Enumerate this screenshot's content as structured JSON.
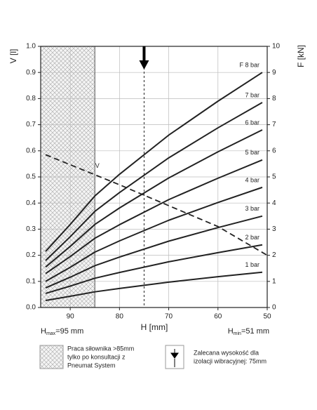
{
  "chart_data": {
    "type": "line",
    "x": [
      95,
      90,
      85,
      80,
      70,
      60,
      51
    ],
    "xlim": [
      96,
      50
    ],
    "xticks": [
      90,
      80,
      70,
      60,
      50
    ],
    "ylim": [
      0,
      1
    ],
    "yticks": [
      {
        "value": 0,
        "label": "0.0"
      },
      0.1,
      0.2,
      0.3,
      0.4,
      0.5,
      0.6,
      0.7,
      0.8,
      0.9,
      {
        "value": 1,
        "label": "1.0"
      }
    ],
    "y2lim": [
      0,
      10
    ],
    "y2ticks": [
      0,
      1,
      2,
      3,
      4,
      5,
      6,
      7,
      8,
      9,
      10
    ],
    "ylabel": "V [l]",
    "y2label": "F [kN]",
    "xlabel": "H [mm]",
    "grid": true,
    "color": "#222222",
    "series": [
      {
        "name": "1 bar",
        "axis": "y2",
        "values": [
          0.27,
          0.43,
          0.6,
          0.73,
          0.97,
          1.18,
          1.35
        ]
      },
      {
        "name": "2 bar",
        "axis": "y2",
        "values": [
          0.54,
          0.82,
          1.12,
          1.34,
          1.75,
          2.1,
          2.4
        ]
      },
      {
        "name": "3 bar",
        "axis": "y2",
        "values": [
          0.75,
          1.16,
          1.6,
          1.93,
          2.54,
          3.06,
          3.5
        ]
      },
      {
        "name": "4 bar",
        "axis": "y2",
        "values": [
          1.0,
          1.54,
          2.12,
          2.55,
          3.34,
          4.02,
          4.6
        ]
      },
      {
        "name": "5 bar",
        "axis": "y2",
        "values": [
          1.3,
          1.95,
          2.65,
          3.17,
          4.13,
          4.95,
          5.65
        ]
      },
      {
        "name": "6 bar",
        "axis": "y2",
        "values": [
          1.55,
          2.34,
          3.18,
          3.81,
          4.96,
          5.96,
          6.8
        ]
      },
      {
        "name": "7 bar",
        "axis": "y2",
        "values": [
          1.8,
          2.71,
          3.68,
          4.4,
          5.73,
          6.88,
          7.85
        ]
      },
      {
        "name": "F 8 bar",
        "axis": "y2",
        "values": [
          2.15,
          3.18,
          4.27,
          5.1,
          6.6,
          7.9,
          9.0
        ]
      }
    ],
    "volume": {
      "name": "V",
      "x": [
        95,
        80,
        60,
        50
      ],
      "values": [
        0.585,
        0.47,
        0.31,
        0.2
      ]
    },
    "hatch_to": 85,
    "recommended_h": 75,
    "hmax": {
      "symbol": "H",
      "sub": "max",
      "text": "=95 mm"
    },
    "hmin": {
      "symbol": "H",
      "sub": "min",
      "text": "=51 mm"
    },
    "legend": {
      "hatch_text": [
        "Praca siłownika >85mm",
        "tylko po konsultacji z",
        "Pneumat System"
      ],
      "arrow_text": [
        "Zalecana wysokość dla",
        "izolacji wibracyjnej: 75mm"
      ]
    }
  }
}
